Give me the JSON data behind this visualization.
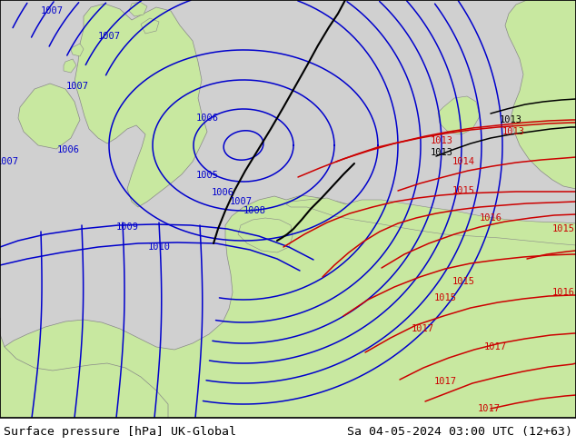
{
  "title_left": "Surface pressure [hPa] UK-Global",
  "title_right": "Sa 04-05-2024 03:00 UTC (12+63)",
  "title_fontsize": 9.5,
  "title_color": "#000000",
  "sea_color": "#d0d0d0",
  "land_color": "#c8e8a0",
  "coast_color": "#888888",
  "blue": "#0000cc",
  "red": "#cc0000",
  "black": "#000000",
  "lw": 1.1,
  "figsize": [
    6.34,
    4.9
  ],
  "dpi": 100,
  "isobar_labels_blue": [
    [
      57,
      12,
      "1007"
    ],
    [
      120,
      40,
      "1007"
    ],
    [
      85,
      95,
      "1007"
    ],
    [
      8,
      178,
      "1007"
    ],
    [
      75,
      165,
      "1006"
    ],
    [
      228,
      130,
      "1006"
    ],
    [
      228,
      193,
      "1005"
    ],
    [
      245,
      212,
      "1006"
    ],
    [
      265,
      222,
      "1007"
    ],
    [
      280,
      232,
      "1008"
    ],
    [
      140,
      250,
      "1009"
    ],
    [
      175,
      272,
      "1010"
    ]
  ],
  "isobar_labels_red": [
    [
      486,
      155,
      "1013"
    ],
    [
      565,
      145,
      "1013"
    ],
    [
      510,
      178,
      "1014"
    ],
    [
      510,
      210,
      "1015"
    ],
    [
      620,
      252,
      "1015"
    ],
    [
      540,
      240,
      "1016"
    ],
    [
      620,
      322,
      "1016"
    ],
    [
      490,
      328,
      "1015"
    ],
    [
      510,
      310,
      "1015"
    ],
    [
      465,
      362,
      "1017"
    ],
    [
      545,
      382,
      "1017"
    ],
    [
      490,
      420,
      "1017"
    ],
    [
      538,
      450,
      "1017"
    ]
  ]
}
